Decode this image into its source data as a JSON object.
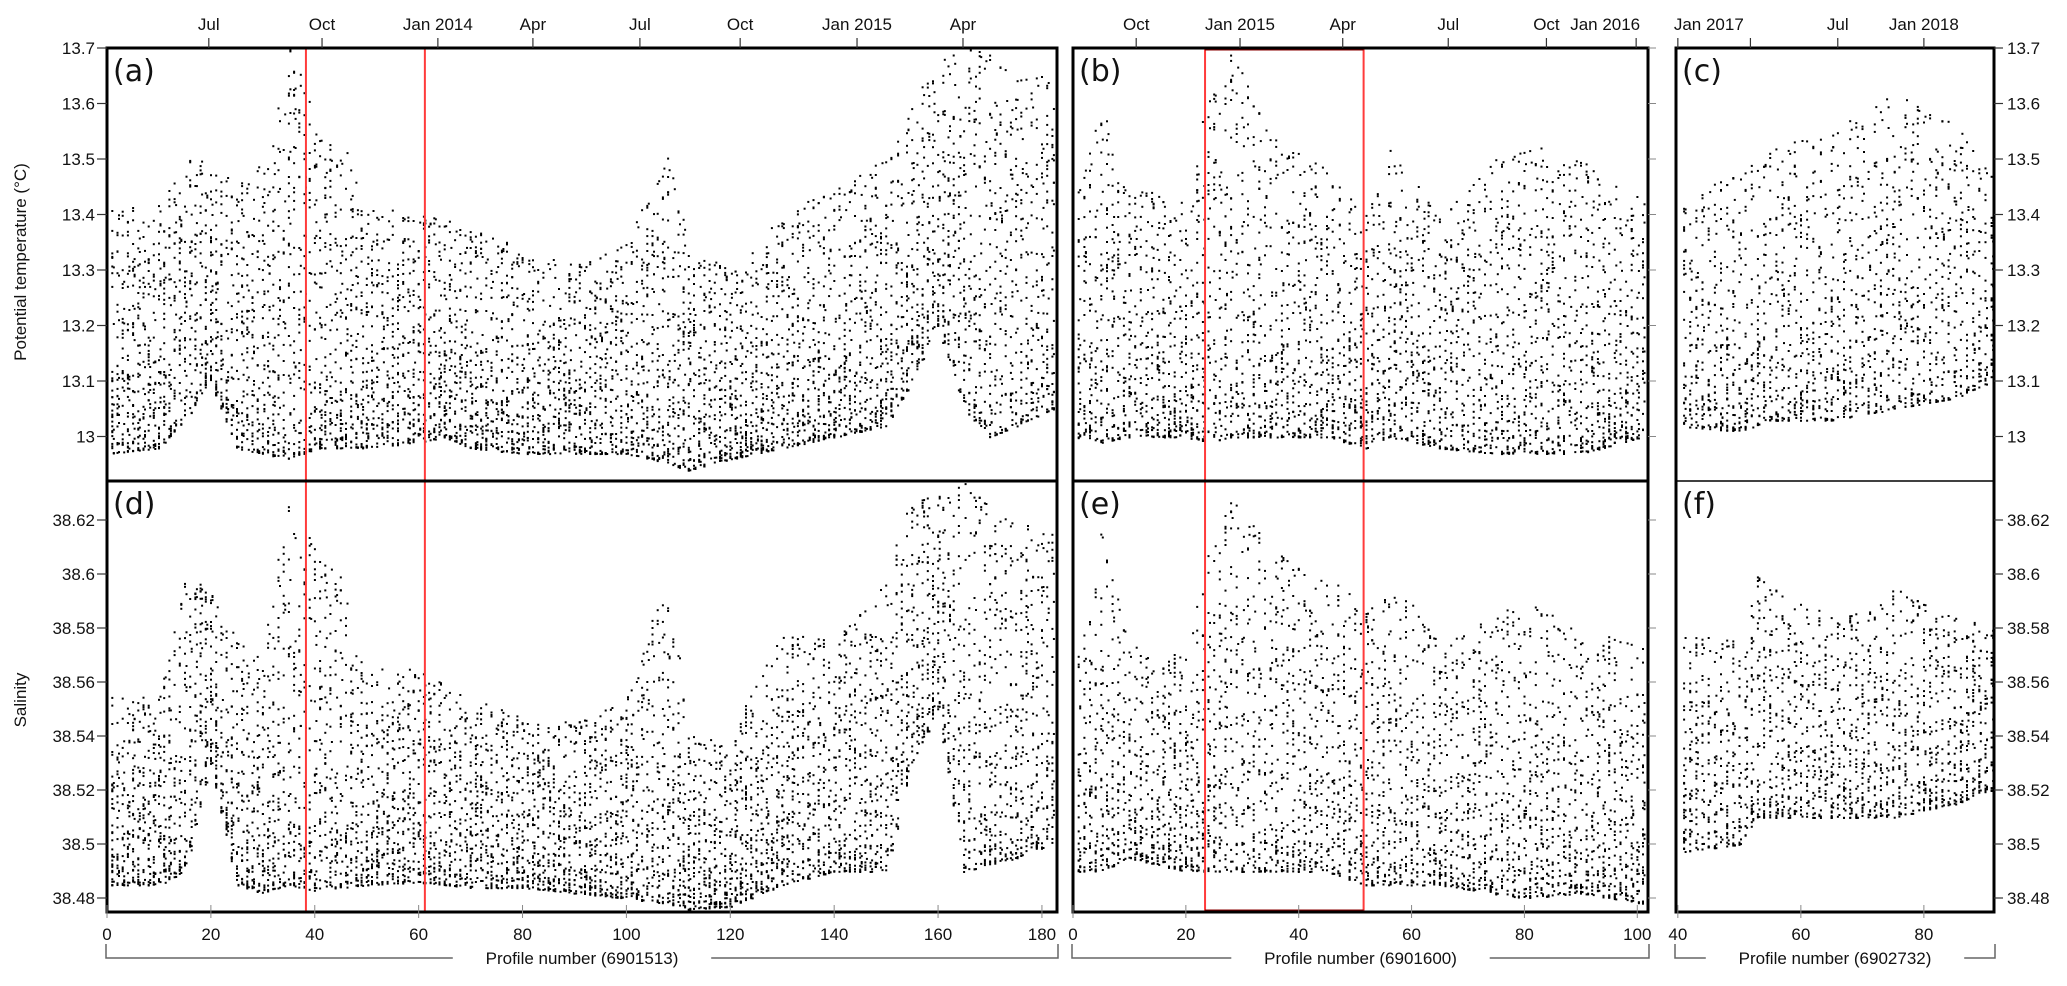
{
  "chart_data": {
    "type": "scatter",
    "ylabel_top": "Potential temperature (°C)",
    "ylabel_bottom": "Salinity",
    "temperature_axis": {
      "ylim": [
        12.92,
        13.7
      ],
      "ticks": [
        13.7,
        13.6,
        13.5,
        13.4,
        13.3,
        13.2,
        13.1,
        13
      ],
      "tick_labels": [
        "13.7",
        "13.6",
        "13.5",
        "13.4",
        "13.3",
        "13.2",
        "13.1",
        "13"
      ]
    },
    "salinity_axis": {
      "ylim": [
        38.475,
        38.634
      ],
      "ticks": [
        38.62,
        38.6,
        38.58,
        38.56,
        38.54,
        38.52,
        38.5,
        38.48
      ],
      "tick_labels": [
        "38.62",
        "38.6",
        "38.58",
        "38.56",
        "38.54",
        "38.52",
        "38.5",
        "38.48"
      ]
    },
    "marker_color": "#000000",
    "highlight_color": "#ff3b3b",
    "floats": [
      {
        "id": "a-d",
        "xlabel": "Profile number (6901513)",
        "temp_panel_label": "(a)",
        "sal_panel_label": "(d)",
        "xlim": [
          0,
          182.9
        ],
        "profiles": [
          1,
          182
        ],
        "x_ticks": [
          0,
          20,
          40,
          60,
          80,
          100,
          120,
          140,
          160,
          180
        ],
        "x_tick_labels": [
          "0",
          "20",
          "40",
          "60",
          "80",
          "100",
          "120",
          "140",
          "160",
          "180"
        ],
        "date_ticks": [
          {
            "label": "Jul",
            "profile": 19.6
          },
          {
            "label": "Oct",
            "profile": 41.4
          },
          {
            "label": "Jan 2014",
            "profile": 63.7
          },
          {
            "label": "Apr",
            "profile": 82.0
          },
          {
            "label": "Jul",
            "profile": 102.6
          },
          {
            "label": "Oct",
            "profile": 121.9
          },
          {
            "label": "Jan 2015",
            "profile": 144.4
          },
          {
            "label": "Apr",
            "profile": 164.8
          }
        ],
        "highlight_profiles": [
          38.3,
          61.2
        ],
        "highlight_style": "lines",
        "temperature_envelope": [
          [
            0,
            12.97,
            13.41
          ],
          [
            10,
            12.98,
            13.42
          ],
          [
            15,
            13.03,
            13.5
          ],
          [
            20,
            13.1,
            13.5
          ],
          [
            25,
            12.98,
            13.45
          ],
          [
            30,
            12.97,
            13.5
          ],
          [
            35,
            12.96,
            13.7
          ],
          [
            38,
            12.97,
            13.7
          ],
          [
            40,
            12.98,
            13.55
          ],
          [
            45,
            12.98,
            13.55
          ],
          [
            50,
            12.98,
            13.42
          ],
          [
            60,
            12.99,
            13.4
          ],
          [
            65,
            13.0,
            13.4
          ],
          [
            70,
            12.98,
            13.38
          ],
          [
            80,
            12.97,
            13.34
          ],
          [
            90,
            12.97,
            13.31
          ],
          [
            100,
            12.97,
            13.35
          ],
          [
            105,
            12.96,
            13.45
          ],
          [
            108,
            12.95,
            13.52
          ],
          [
            112,
            12.94,
            13.35
          ],
          [
            120,
            12.96,
            13.3
          ],
          [
            130,
            12.98,
            13.4
          ],
          [
            140,
            13.0,
            13.45
          ],
          [
            150,
            13.02,
            13.5
          ],
          [
            155,
            13.1,
            13.6
          ],
          [
            160,
            13.2,
            13.68
          ],
          [
            165,
            13.05,
            13.7
          ],
          [
            170,
            13.0,
            13.7
          ],
          [
            175,
            13.02,
            13.65
          ],
          [
            182,
            13.05,
            13.65
          ]
        ],
        "salinity_envelope": [
          [
            0,
            38.485,
            38.555
          ],
          [
            10,
            38.485,
            38.555
          ],
          [
            15,
            38.49,
            38.6
          ],
          [
            20,
            38.53,
            38.595
          ],
          [
            25,
            38.485,
            38.575
          ],
          [
            30,
            38.482,
            38.57
          ],
          [
            35,
            38.485,
            38.63
          ],
          [
            40,
            38.483,
            38.61
          ],
          [
            45,
            38.484,
            38.6
          ],
          [
            50,
            38.485,
            38.565
          ],
          [
            60,
            38.486,
            38.565
          ],
          [
            70,
            38.484,
            38.555
          ],
          [
            80,
            38.484,
            38.548
          ],
          [
            90,
            38.482,
            38.545
          ],
          [
            100,
            38.48,
            38.555
          ],
          [
            108,
            38.478,
            38.6
          ],
          [
            112,
            38.476,
            38.54
          ],
          [
            120,
            38.477,
            38.54
          ],
          [
            130,
            38.485,
            38.58
          ],
          [
            140,
            38.49,
            38.575
          ],
          [
            150,
            38.49,
            38.6
          ],
          [
            155,
            38.53,
            38.63
          ],
          [
            160,
            38.55,
            38.634
          ],
          [
            165,
            38.49,
            38.634
          ],
          [
            175,
            38.495,
            38.62
          ],
          [
            182,
            38.5,
            38.615
          ]
        ]
      },
      {
        "id": "b-e",
        "xlabel": "Profile number (6901600)",
        "temp_panel_label": "(b)",
        "sal_panel_label": "(e)",
        "xlim": [
          0,
          101.9
        ],
        "profiles": [
          1,
          101
        ],
        "x_ticks": [
          0,
          20,
          40,
          60,
          80,
          100
        ],
        "x_tick_labels": [
          "0",
          "20",
          "40",
          "60",
          "80",
          "100"
        ],
        "date_ticks": [
          {
            "label": "Oct",
            "profile": 11.2
          },
          {
            "label": "Jan 2015",
            "profile": 29.6
          },
          {
            "label": "Apr",
            "profile": 47.8
          },
          {
            "label": "Jul",
            "profile": 66.5
          },
          {
            "label": "Oct",
            "profile": 83.9
          },
          {
            "label": "Jan 2016",
            "profile": 99.8
          }
        ],
        "highlight_profiles": [
          23.4,
          51.5
        ],
        "highlight_style": "box",
        "temperature_envelope": [
          [
            0,
            13.0,
            13.42
          ],
          [
            5,
            12.99,
            13.6
          ],
          [
            10,
            13.0,
            13.45
          ],
          [
            20,
            13.0,
            13.43
          ],
          [
            24,
            12.99,
            13.62
          ],
          [
            28,
            13.0,
            13.7
          ],
          [
            35,
            13.0,
            13.55
          ],
          [
            45,
            13.0,
            13.48
          ],
          [
            52,
            12.98,
            13.4
          ],
          [
            56,
            13.0,
            13.52
          ],
          [
            65,
            12.98,
            13.4
          ],
          [
            75,
            12.97,
            13.5
          ],
          [
            80,
            12.97,
            13.53
          ],
          [
            90,
            12.97,
            13.5
          ],
          [
            101,
            13.0,
            13.43
          ]
        ],
        "salinity_envelope": [
          [
            0,
            38.49,
            38.56
          ],
          [
            5,
            38.49,
            38.615
          ],
          [
            10,
            38.495,
            38.575
          ],
          [
            20,
            38.49,
            38.57
          ],
          [
            24,
            38.49,
            38.61
          ],
          [
            28,
            38.49,
            38.63
          ],
          [
            35,
            38.49,
            38.61
          ],
          [
            45,
            38.49,
            38.6
          ],
          [
            52,
            38.485,
            38.59
          ],
          [
            56,
            38.485,
            38.6
          ],
          [
            65,
            38.485,
            38.575
          ],
          [
            80,
            38.48,
            38.59
          ],
          [
            90,
            38.482,
            38.58
          ],
          [
            101,
            38.478,
            38.575
          ]
        ]
      },
      {
        "id": "c-f",
        "xlabel": "Profile number (6902732)",
        "temp_panel_label": "(c)",
        "sal_panel_label": "(f)",
        "xlim": [
          39.7,
          91.4
        ],
        "profiles": [
          41,
          91
        ],
        "x_ticks": [
          40,
          60,
          80
        ],
        "x_tick_labels": [
          "40",
          "60",
          "80"
        ],
        "date_ticks": [
          {
            "label": "Jan 2017",
            "profile": 40
          },
          {
            "label": "",
            "profile": 51.8
          },
          {
            "label": "Jul",
            "profile": 66
          },
          {
            "label": "Jan 2018",
            "profile": 80
          }
        ],
        "highlight_profiles": [],
        "highlight_style": "none",
        "temperature_envelope": [
          [
            40,
            13.02,
            13.42
          ],
          [
            50,
            13.01,
            13.48
          ],
          [
            55,
            13.03,
            13.52
          ],
          [
            65,
            13.03,
            13.55
          ],
          [
            75,
            13.05,
            13.62
          ],
          [
            85,
            13.07,
            13.57
          ],
          [
            91,
            13.1,
            13.47
          ]
        ],
        "salinity_envelope": [
          [
            40,
            38.497,
            38.58
          ],
          [
            50,
            38.5,
            38.575
          ],
          [
            53,
            38.51,
            38.6
          ],
          [
            65,
            38.51,
            38.585
          ],
          [
            75,
            38.51,
            38.595
          ],
          [
            85,
            38.515,
            38.585
          ],
          [
            91,
            38.52,
            38.58
          ]
        ]
      }
    ]
  }
}
